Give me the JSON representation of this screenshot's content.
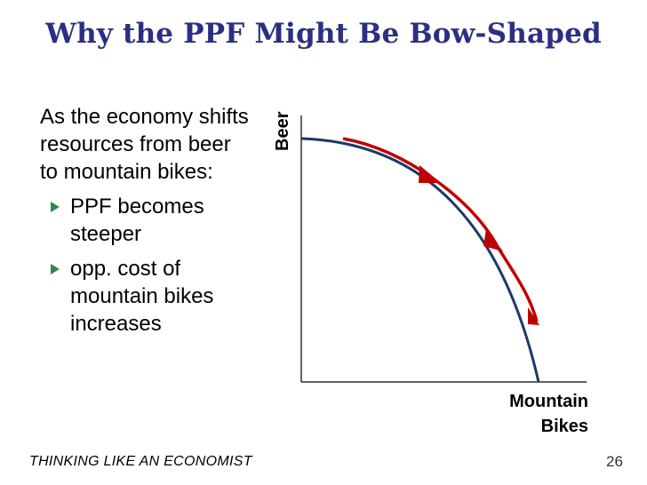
{
  "title": "Why the PPF Might Be Bow-Shaped",
  "body": {
    "intro": "As the economy shifts resources from beer to mountain bikes:",
    "bullets": [
      "PPF becomes steeper",
      "opp. cost of mountain bikes increases"
    ]
  },
  "chart_data": {
    "type": "line",
    "ylabel": "Beer",
    "xlabel_line1": "Mountain",
    "xlabel_line2": "Bikes",
    "curve_color": "#1b3a66",
    "arrow_color": "#c00000",
    "description_series": "PPF",
    "direction": "from beer toward mountain bikes"
  },
  "footer": {
    "left": "THINKING LIKE AN ECONOMIST",
    "page_number": "26"
  }
}
